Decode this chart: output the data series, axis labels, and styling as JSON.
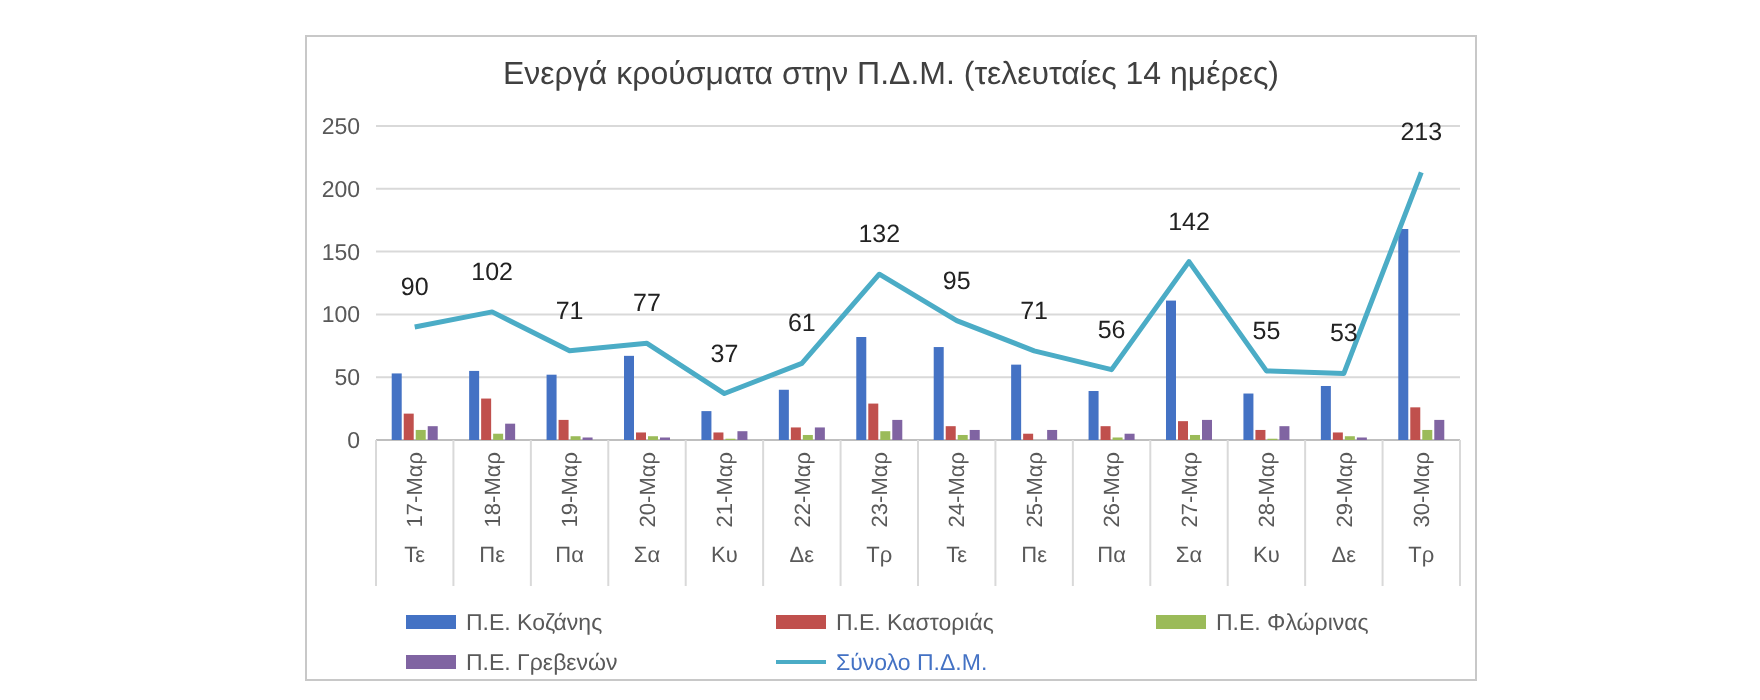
{
  "chart_data": {
    "type": "bar",
    "title": "Ενεργά κρούσματα στην Π.Δ.Μ. (τελευταίες 14 ημέρες)",
    "categories": [
      "17-Μαρ\nΤε",
      "18-Μαρ\nΠε",
      "19-Μαρ\nΠα",
      "20-Μαρ\nΣα",
      "21-Μαρ\nΚυ",
      "22-Μαρ\nΔε",
      "23-Μαρ\nΤρ",
      "24-Μαρ\nΤε",
      "25-Μαρ\nΠε",
      "26-Μαρ\nΠα",
      "27-Μαρ\nΣα",
      "28-Μαρ\nΚυ",
      "29-Μαρ\nΔε",
      "30-Μαρ\nΤρ"
    ],
    "series": [
      {
        "name": "Π.Ε. Κοζάνης",
        "color": "#4472c4",
        "values": [
          53,
          55,
          52,
          67,
          23,
          40,
          82,
          74,
          60,
          39,
          111,
          37,
          43,
          168
        ]
      },
      {
        "name": "Π.Ε. Καστοριάς",
        "color": "#c0504d",
        "values": [
          21,
          33,
          16,
          6,
          6,
          10,
          29,
          11,
          5,
          11,
          15,
          8,
          6,
          26
        ]
      },
      {
        "name": "Π.Ε. Φλώρινας",
        "color": "#9bbb59",
        "values": [
          8,
          5,
          3,
          3,
          1,
          4,
          7,
          4,
          0,
          2,
          4,
          1,
          3,
          8
        ]
      },
      {
        "name": "Π.Ε. Γρεβενών",
        "color": "#8064a2",
        "values": [
          11,
          13,
          2,
          2,
          7,
          10,
          16,
          8,
          8,
          5,
          16,
          11,
          2,
          16
        ]
      },
      {
        "name": "Σύνολο Π.Δ.Μ.",
        "type": "line",
        "color": "#4bacc6",
        "values": [
          90,
          102,
          71,
          77,
          37,
          61,
          132,
          95,
          71,
          56,
          142,
          55,
          53,
          213
        ],
        "value_labels": [
          "90",
          "102",
          "71",
          "77",
          "37",
          "61",
          "132",
          "95",
          "71",
          "56",
          "142",
          "55",
          "53",
          "213"
        ]
      }
    ],
    "ylim": [
      0,
      250
    ],
    "yticks": [
      0,
      50,
      100,
      150,
      200,
      250
    ],
    "grid": "y",
    "legend": "bottom",
    "marker": "none"
  }
}
